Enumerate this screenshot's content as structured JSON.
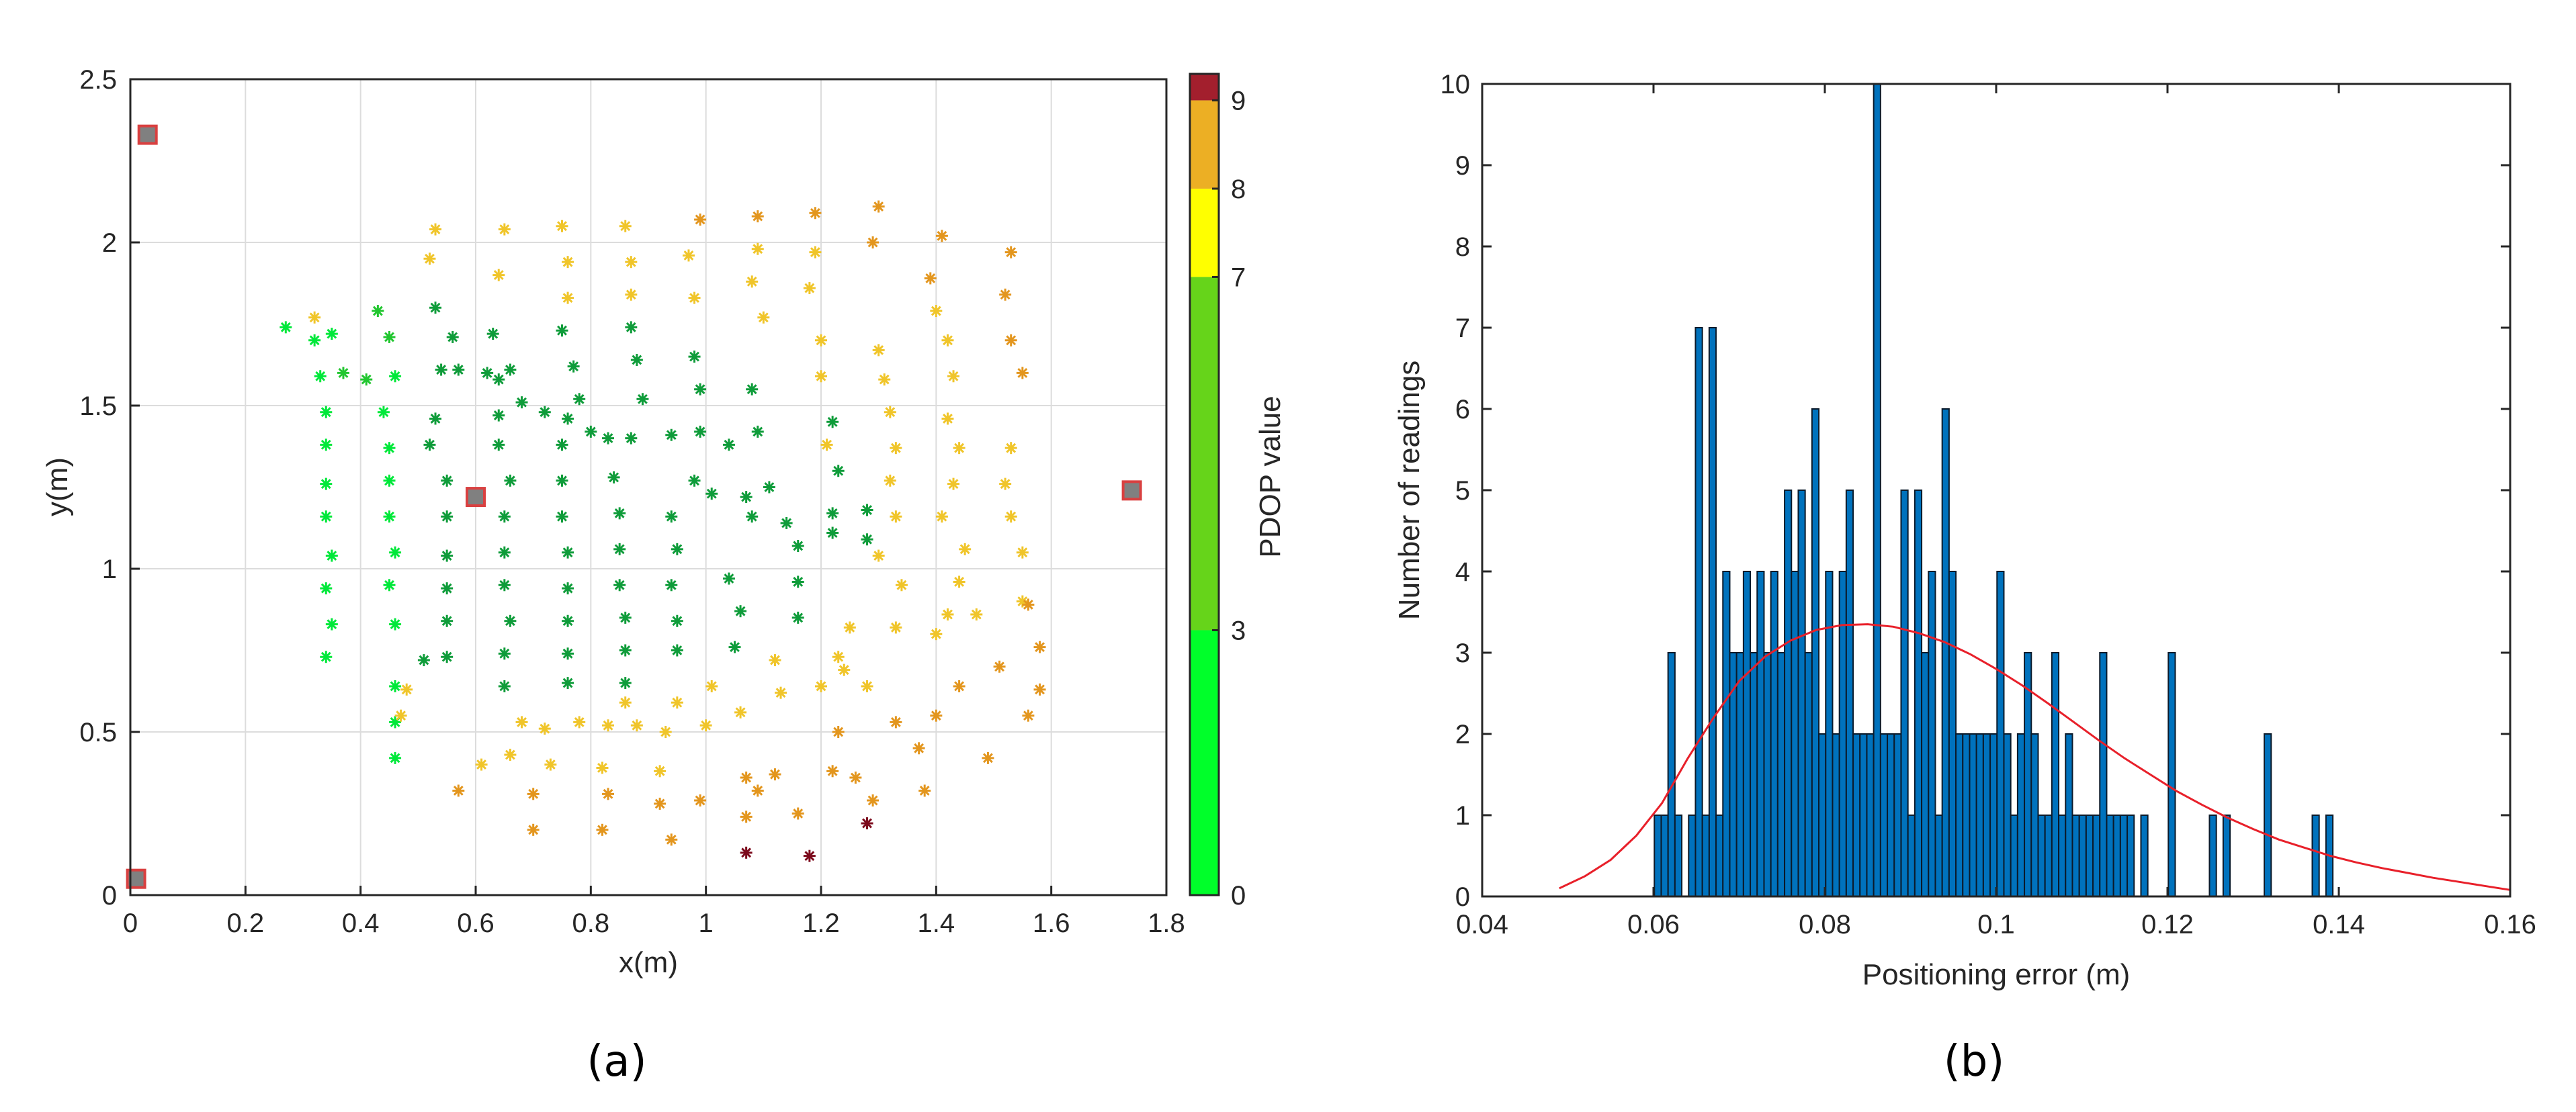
{
  "panels": {
    "a": "(a)",
    "b": "(b)"
  },
  "chart_data": [
    {
      "type": "scatter",
      "xlabel": "x(m)",
      "ylabel": "y(m)",
      "xlim": [
        0,
        1.8
      ],
      "ylim": [
        0,
        2.5
      ],
      "xticks": [
        "0",
        "0.2",
        "0.4",
        "0.6",
        "0.8",
        "1",
        "1.2",
        "1.4",
        "1.6",
        "1.8"
      ],
      "yticks": [
        "0",
        "0.5",
        "1",
        "1.5",
        "2",
        "2.5"
      ],
      "grid": true,
      "anchors": [
        [
          0.03,
          2.33
        ],
        [
          0.6,
          1.22
        ],
        [
          1.74,
          1.24
        ],
        [
          0.01,
          0.05
        ]
      ],
      "anchor_color": "#808080",
      "anchor_edge": "#d94040",
      "colorbar": {
        "label": "PDOP value",
        "ticks": [
          0,
          3,
          7,
          8,
          9
        ],
        "bands": [
          {
            "from": 0,
            "to": 3,
            "color": "#00ff2a"
          },
          {
            "from": 3,
            "to": 7,
            "color": "#66d41a"
          },
          {
            "from": 7,
            "to": 8,
            "color": "#ffff00"
          },
          {
            "from": 8,
            "to": 9,
            "color": "#ecaf24"
          },
          {
            "from": 9,
            "to": 9.3,
            "color": "#a31f2d"
          }
        ]
      },
      "points": [
        [
          0.27,
          1.74,
          2.5
        ],
        [
          0.32,
          1.7,
          2.5
        ],
        [
          0.35,
          1.72,
          2.5
        ],
        [
          0.33,
          1.59,
          2.5
        ],
        [
          0.37,
          1.6,
          3.5
        ],
        [
          0.34,
          1.48,
          2.5
        ],
        [
          0.34,
          1.38,
          2.5
        ],
        [
          0.34,
          1.26,
          2.5
        ],
        [
          0.34,
          1.16,
          2.5
        ],
        [
          0.35,
          1.04,
          2.5
        ],
        [
          0.34,
          0.94,
          2.5
        ],
        [
          0.35,
          0.83,
          2.5
        ],
        [
          0.34,
          0.73,
          2.5
        ],
        [
          0.43,
          1.79,
          4.5
        ],
        [
          0.45,
          1.71,
          4.0
        ],
        [
          0.41,
          1.58,
          4.0
        ],
        [
          0.46,
          1.59,
          2.5
        ],
        [
          0.44,
          1.48,
          2.5
        ],
        [
          0.45,
          1.37,
          2.5
        ],
        [
          0.45,
          1.27,
          2.5
        ],
        [
          0.45,
          1.16,
          2.5
        ],
        [
          0.46,
          1.05,
          2.5
        ],
        [
          0.45,
          0.95,
          2.5
        ],
        [
          0.46,
          0.83,
          2.5
        ],
        [
          0.46,
          0.64,
          2.5
        ],
        [
          0.46,
          0.53,
          2.5
        ],
        [
          0.46,
          0.42,
          2.5
        ],
        [
          0.53,
          1.8,
          5.0
        ],
        [
          0.56,
          1.71,
          5.0
        ],
        [
          0.54,
          1.61,
          5.0
        ],
        [
          0.57,
          1.61,
          5.0
        ],
        [
          0.53,
          1.46,
          5.0
        ],
        [
          0.52,
          1.38,
          5.0
        ],
        [
          0.55,
          1.27,
          5.0
        ],
        [
          0.55,
          1.16,
          5.0
        ],
        [
          0.55,
          1.04,
          5.0
        ],
        [
          0.55,
          0.94,
          5.0
        ],
        [
          0.55,
          0.84,
          5.0
        ],
        [
          0.55,
          0.73,
          5.0
        ],
        [
          0.51,
          0.72,
          5.0
        ],
        [
          0.63,
          1.72,
          5.5
        ],
        [
          0.62,
          1.6,
          5.5
        ],
        [
          0.64,
          1.58,
          5.5
        ],
        [
          0.66,
          1.61,
          5.5
        ],
        [
          0.68,
          1.51,
          5.5
        ],
        [
          0.64,
          1.47,
          5.5
        ],
        [
          0.64,
          1.38,
          5.5
        ],
        [
          0.66,
          1.27,
          5.5
        ],
        [
          0.65,
          1.16,
          5.5
        ],
        [
          0.65,
          1.05,
          5.5
        ],
        [
          0.65,
          0.95,
          5.5
        ],
        [
          0.66,
          0.84,
          5.5
        ],
        [
          0.65,
          0.74,
          5.5
        ],
        [
          0.65,
          0.64,
          5.5
        ],
        [
          0.75,
          1.73,
          6.0
        ],
        [
          0.77,
          1.62,
          6.0
        ],
        [
          0.72,
          1.48,
          6.0
        ],
        [
          0.76,
          1.46,
          6.0
        ],
        [
          0.78,
          1.52,
          6.0
        ],
        [
          0.75,
          1.38,
          6.0
        ],
        [
          0.75,
          1.27,
          6.0
        ],
        [
          0.75,
          1.16,
          6.0
        ],
        [
          0.76,
          1.05,
          6.0
        ],
        [
          0.76,
          0.94,
          6.0
        ],
        [
          0.76,
          0.84,
          6.0
        ],
        [
          0.76,
          0.74,
          6.0
        ],
        [
          0.76,
          0.65,
          6.0
        ],
        [
          0.87,
          1.74,
          6.0
        ],
        [
          0.88,
          1.64,
          6.0
        ],
        [
          0.89,
          1.52,
          6.0
        ],
        [
          0.8,
          1.42,
          6.0
        ],
        [
          0.83,
          1.4,
          6.0
        ],
        [
          0.87,
          1.4,
          6.0
        ],
        [
          0.84,
          1.28,
          6.0
        ],
        [
          0.85,
          1.17,
          6.0
        ],
        [
          0.85,
          1.06,
          6.0
        ],
        [
          0.85,
          0.95,
          6.0
        ],
        [
          0.86,
          0.85,
          6.0
        ],
        [
          0.86,
          0.75,
          6.0
        ],
        [
          0.86,
          0.65,
          6.0
        ],
        [
          0.98,
          1.65,
          6.0
        ],
        [
          0.99,
          1.55,
          6.0
        ],
        [
          0.94,
          1.41,
          6.0
        ],
        [
          0.99,
          1.42,
          6.0
        ],
        [
          0.98,
          1.27,
          6.0
        ],
        [
          0.94,
          1.16,
          6.0
        ],
        [
          0.95,
          1.06,
          6.0
        ],
        [
          0.94,
          0.95,
          6.0
        ],
        [
          0.95,
          0.84,
          6.0
        ],
        [
          0.95,
          0.75,
          6.0
        ],
        [
          1.04,
          1.38,
          6.0
        ],
        [
          1.01,
          1.23,
          6.0
        ],
        [
          1.07,
          1.22,
          6.0
        ],
        [
          1.04,
          0.97,
          6.0
        ],
        [
          1.06,
          0.87,
          6.0
        ],
        [
          1.05,
          0.76,
          6.0
        ],
        [
          1.08,
          1.55,
          6.0
        ],
        [
          1.09,
          1.42,
          6.0
        ],
        [
          1.11,
          1.25,
          6.0
        ],
        [
          1.08,
          1.16,
          6.0
        ],
        [
          1.14,
          1.14,
          6.0
        ],
        [
          1.16,
          1.07,
          6.0
        ],
        [
          1.16,
          0.96,
          6.0
        ],
        [
          1.16,
          0.85,
          6.0
        ],
        [
          1.22,
          1.45,
          6.0
        ],
        [
          1.23,
          1.3,
          6.0
        ],
        [
          1.22,
          1.17,
          6.0
        ],
        [
          1.22,
          1.11,
          6.0
        ],
        [
          1.28,
          1.09,
          6.0
        ],
        [
          1.28,
          1.18,
          6.0
        ],
        [
          0.52,
          1.95,
          7.5
        ],
        [
          0.53,
          2.04,
          7.5
        ],
        [
          0.65,
          2.04,
          7.5
        ],
        [
          0.64,
          1.9,
          7.5
        ],
        [
          0.75,
          2.05,
          7.5
        ],
        [
          0.76,
          1.94,
          7.5
        ],
        [
          0.76,
          1.83,
          7.5
        ],
        [
          0.86,
          2.05,
          7.5
        ],
        [
          0.87,
          1.94,
          7.5
        ],
        [
          0.87,
          1.84,
          7.5
        ],
        [
          0.97,
          1.96,
          7.5
        ],
        [
          0.98,
          1.83,
          7.5
        ],
        [
          1.09,
          1.98,
          7.5
        ],
        [
          1.1,
          1.77,
          7.5
        ],
        [
          1.08,
          1.88,
          7.5
        ],
        [
          1.19,
          1.97,
          7.5
        ],
        [
          1.18,
          1.86,
          7.5
        ],
        [
          1.2,
          1.7,
          7.5
        ],
        [
          1.2,
          1.59,
          7.5
        ],
        [
          1.21,
          1.38,
          7.5
        ],
        [
          1.3,
          1.67,
          7.5
        ],
        [
          1.31,
          1.58,
          7.5
        ],
        [
          1.32,
          1.48,
          7.5
        ],
        [
          1.33,
          1.37,
          7.5
        ],
        [
          1.32,
          1.27,
          7.5
        ],
        [
          1.33,
          1.16,
          7.5
        ],
        [
          1.3,
          1.04,
          7.5
        ],
        [
          1.34,
          0.95,
          7.5
        ],
        [
          1.4,
          1.79,
          7.5
        ],
        [
          1.42,
          1.7,
          7.5
        ],
        [
          1.43,
          1.59,
          7.5
        ],
        [
          1.42,
          1.46,
          7.5
        ],
        [
          1.44,
          1.37,
          7.5
        ],
        [
          1.43,
          1.26,
          7.5
        ],
        [
          1.41,
          1.16,
          7.5
        ],
        [
          1.45,
          1.06,
          7.5
        ],
        [
          1.44,
          0.96,
          7.5
        ],
        [
          1.42,
          0.86,
          7.5
        ],
        [
          1.4,
          0.8,
          7.5
        ],
        [
          1.53,
          1.37,
          7.5
        ],
        [
          1.52,
          1.26,
          7.5
        ],
        [
          1.53,
          1.16,
          7.5
        ],
        [
          1.55,
          1.05,
          7.5
        ],
        [
          1.55,
          0.9,
          7.5
        ],
        [
          1.47,
          0.86,
          7.5
        ],
        [
          1.33,
          0.82,
          7.5
        ],
        [
          1.25,
          0.82,
          7.5
        ],
        [
          1.23,
          0.73,
          7.5
        ],
        [
          1.24,
          0.69,
          7.5
        ],
        [
          1.28,
          0.64,
          7.5
        ],
        [
          1.2,
          0.64,
          7.5
        ],
        [
          1.12,
          0.72,
          7.5
        ],
        [
          1.13,
          0.62,
          7.5
        ],
        [
          1.01,
          0.64,
          7.5
        ],
        [
          1.06,
          0.56,
          7.5
        ],
        [
          1.0,
          0.52,
          7.5
        ],
        [
          0.95,
          0.59,
          7.5
        ],
        [
          0.93,
          0.5,
          7.5
        ],
        [
          0.88,
          0.52,
          7.5
        ],
        [
          0.86,
          0.59,
          7.5
        ],
        [
          0.83,
          0.52,
          7.5
        ],
        [
          0.78,
          0.53,
          7.5
        ],
        [
          0.72,
          0.51,
          7.5
        ],
        [
          0.68,
          0.53,
          7.5
        ],
        [
          0.66,
          0.43,
          7.5
        ],
        [
          0.73,
          0.4,
          7.5
        ],
        [
          0.82,
          0.39,
          7.5
        ],
        [
          0.92,
          0.38,
          7.5
        ],
        [
          0.61,
          0.4,
          7.5
        ],
        [
          0.48,
          0.63,
          7.5
        ],
        [
          0.47,
          0.55,
          7.5
        ],
        [
          0.32,
          1.77,
          7.5
        ],
        [
          0.99,
          2.07,
          8.5
        ],
        [
          1.09,
          2.08,
          8.5
        ],
        [
          1.19,
          2.09,
          8.5
        ],
        [
          1.3,
          2.11,
          8.5
        ],
        [
          1.29,
          2.0,
          8.5
        ],
        [
          1.41,
          2.02,
          8.5
        ],
        [
          1.39,
          1.89,
          8.5
        ],
        [
          1.53,
          1.97,
          8.5
        ],
        [
          1.52,
          1.84,
          8.5
        ],
        [
          1.53,
          1.7,
          8.5
        ],
        [
          1.55,
          1.6,
          8.5
        ],
        [
          1.56,
          0.89,
          8.5
        ],
        [
          1.58,
          0.76,
          8.5
        ],
        [
          1.58,
          0.63,
          8.5
        ],
        [
          1.56,
          0.55,
          8.5
        ],
        [
          1.51,
          0.7,
          8.5
        ],
        [
          1.44,
          0.64,
          8.5
        ],
        [
          1.4,
          0.55,
          8.5
        ],
        [
          1.37,
          0.45,
          8.5
        ],
        [
          1.38,
          0.32,
          8.5
        ],
        [
          1.49,
          0.42,
          8.5
        ],
        [
          1.33,
          0.53,
          8.5
        ],
        [
          1.23,
          0.5,
          8.5
        ],
        [
          1.22,
          0.38,
          8.5
        ],
        [
          1.26,
          0.36,
          8.5
        ],
        [
          1.12,
          0.37,
          8.5
        ],
        [
          1.07,
          0.36,
          8.5
        ],
        [
          1.09,
          0.32,
          8.5
        ],
        [
          0.99,
          0.29,
          8.5
        ],
        [
          0.92,
          0.28,
          8.5
        ],
        [
          0.83,
          0.31,
          8.5
        ],
        [
          0.82,
          0.2,
          8.5
        ],
        [
          0.7,
          0.31,
          8.5
        ],
        [
          0.7,
          0.2,
          8.5
        ],
        [
          0.57,
          0.32,
          8.5
        ],
        [
          0.94,
          0.17,
          8.5
        ],
        [
          1.07,
          0.24,
          8.5
        ],
        [
          1.16,
          0.25,
          8.5
        ],
        [
          1.29,
          0.29,
          8.5
        ],
        [
          1.07,
          0.13,
          9.2
        ],
        [
          1.18,
          0.12,
          9.2
        ],
        [
          1.28,
          0.22,
          9.2
        ]
      ]
    },
    {
      "type": "bar",
      "xlabel": "Positioning error (m)",
      "ylabel": "Number of readings",
      "xlim": [
        0.04,
        0.16
      ],
      "ylim": [
        0,
        10
      ],
      "xticks": [
        "0.04",
        "0.06",
        "0.08",
        "0.1",
        "0.12",
        "0.14",
        "0.16"
      ],
      "yticks": [
        "0",
        "1",
        "2",
        "3",
        "4",
        "5",
        "6",
        "7",
        "8",
        "9",
        "10"
      ],
      "bar_color": "#0072bd",
      "bin_width": 0.0008,
      "bin_start": 0.0601,
      "counts": [
        1,
        1,
        3,
        1,
        0,
        1,
        7,
        1,
        7,
        1,
        4,
        3,
        3,
        4,
        3,
        4,
        3,
        4,
        3,
        5,
        4,
        5,
        3,
        6,
        2,
        4,
        2,
        4,
        5,
        2,
        2,
        2,
        10,
        2,
        2,
        2,
        5,
        1,
        5,
        3,
        4,
        1,
        6,
        4,
        2,
        2,
        2,
        2,
        2,
        2,
        4,
        2,
        1,
        2,
        3,
        2,
        1,
        1,
        3,
        1,
        2,
        1,
        1,
        1,
        1,
        3,
        1,
        1,
        1,
        1,
        0,
        1,
        0,
        0,
        0,
        3,
        0,
        0,
        0,
        0,
        0,
        1,
        0,
        1,
        0,
        0,
        0,
        0,
        0,
        2,
        0,
        0,
        0,
        0,
        0,
        0,
        1,
        0,
        1
      ],
      "fit_curve": {
        "color": "#e8202a",
        "x": [
          0.049,
          0.052,
          0.055,
          0.058,
          0.061,
          0.064,
          0.067,
          0.07,
          0.073,
          0.076,
          0.079,
          0.082,
          0.085,
          0.088,
          0.091,
          0.094,
          0.097,
          0.1,
          0.103,
          0.106,
          0.109,
          0.112,
          0.115,
          0.118,
          0.121,
          0.124,
          0.127,
          0.13,
          0.133,
          0.136,
          0.139,
          0.142,
          0.145,
          0.148,
          0.151,
          0.154,
          0.157,
          0.16
        ],
        "y": [
          0.1,
          0.25,
          0.45,
          0.75,
          1.15,
          1.7,
          2.2,
          2.65,
          2.95,
          3.15,
          3.28,
          3.34,
          3.35,
          3.32,
          3.24,
          3.13,
          2.98,
          2.8,
          2.6,
          2.38,
          2.15,
          1.92,
          1.7,
          1.5,
          1.3,
          1.13,
          0.97,
          0.83,
          0.7,
          0.6,
          0.5,
          0.42,
          0.35,
          0.29,
          0.23,
          0.18,
          0.13,
          0.08
        ]
      }
    }
  ]
}
